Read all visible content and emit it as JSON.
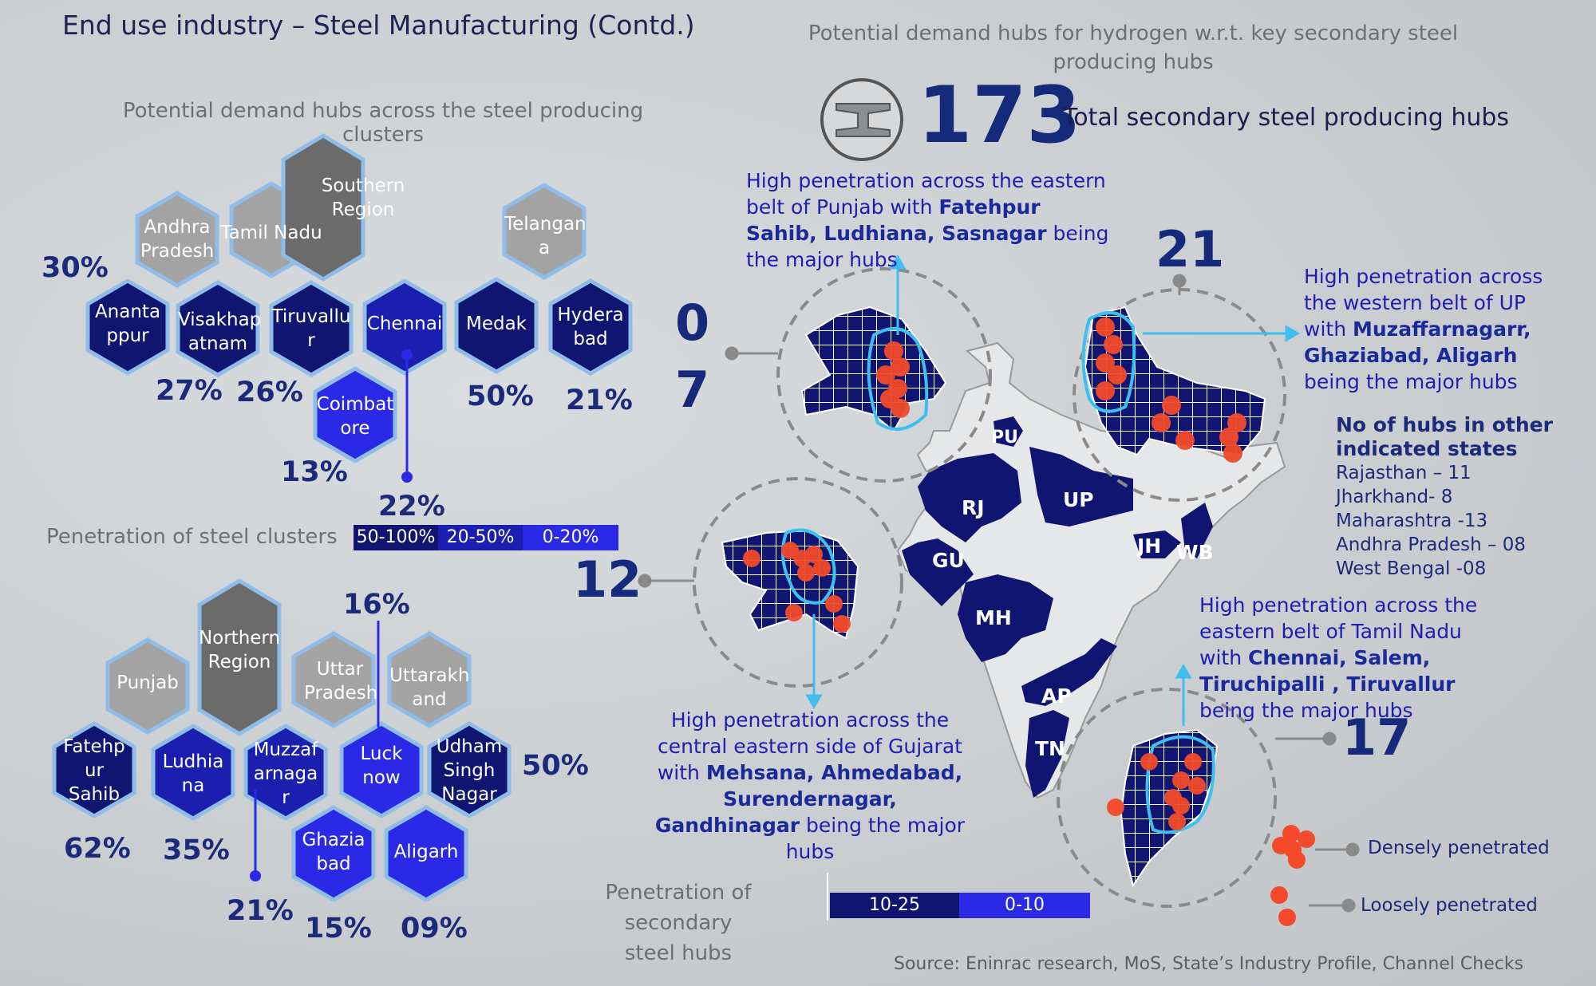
{
  "header": {
    "title": "End use industry – Steel Manufacturing (Contd.)",
    "right_title_1": "Potential demand hubs for hydrogen w.r.t. key secondary steel",
    "right_title_2": "producing hubs"
  },
  "left": {
    "clusters_title": "Potential demand hubs across the steel producing clusters",
    "southern": {
      "region": "Southern Region",
      "states": [
        {
          "name": "Andhra Pradesh",
          "pct": "30%"
        },
        {
          "name": "Tamil Nadu",
          "pct": ""
        },
        {
          "name": "Telangana",
          "pct": ""
        }
      ],
      "hubs": [
        {
          "name": "Anantappur",
          "pct": "27%"
        },
        {
          "name": "Visakhapatnam",
          "pct": "26%"
        },
        {
          "name": "Tiruvallur",
          "pct": ""
        },
        {
          "name": "Chennai",
          "pct": "22%"
        },
        {
          "name": "Coimbatore",
          "pct": "13%"
        },
        {
          "name": "Medak",
          "pct": "50%"
        },
        {
          "name": "Hyderabad",
          "pct": "21%"
        }
      ],
      "labels": {
        "ap_pct": "30%",
        "anantappur_pct": "27%",
        "visak_pct": "26%",
        "coim_pct": "13%",
        "chennai_pct": "22%",
        "medak_pct": "50%",
        "hyd_pct": "21%"
      }
    },
    "penetration_title": "Penetration of steel clusters",
    "penetration_legend": [
      "50-100%",
      "20-50%",
      "0-20%"
    ],
    "northern": {
      "region": "Northern Region",
      "labels": {
        "luck_pct": "16%",
        "udham_pct": "50%",
        "fatehpur_pct": "62%",
        "ludhiana_pct": "35%",
        "muzz_pct": "21%",
        "ghaz_pct": "15%",
        "aligarh_pct": "09%"
      }
    },
    "hex_text": {
      "andhra": "Andhra Pradesh",
      "tamil": "Tamil Nadu",
      "southern": "Southern Region",
      "telangana": "Telangan a",
      "anantappur": "Ananta ppur",
      "visak": "Visakhap atnam",
      "tiruvallur": "Tiruvallu r",
      "chennai": "Chennai",
      "medak": "Medak",
      "hyderabad": "Hydera bad",
      "coimbatore": "Coimbat ore",
      "punjab": "Punjab",
      "northern": "Northern Region",
      "uttar": "Uttar Pradesh",
      "uttarakhand": "Uttarakh and",
      "fatehpur": "Fatehp ur Sahib",
      "ludhiana": "Ludhia na",
      "muzz": "Muzzaf arnaga r",
      "lucknow": "Luck now",
      "udham": "Udham Singh Nagar",
      "ghaziabad": "Ghazia bad",
      "aligarh": "Aligarh"
    }
  },
  "right": {
    "total_num": "173",
    "total_label": "Total secondary steel producing hubs",
    "punjab_num_a": "0",
    "punjab_num_b": "7",
    "up_num": "21",
    "gujarat_num": "12",
    "tn_num": "17",
    "callout_punjab": {
      "pre": "High penetration across the eastern belt of Punjab with ",
      "bold": "Fatehpur Sahib, Ludhiana, Sasnagar",
      "post": " being the major hubs"
    },
    "callout_up": {
      "pre": "High penetration across the western belt of UP with ",
      "bold": "Muzaffarnagarr, Ghaziabad, Aligarh",
      "post": " being the major hubs"
    },
    "callout_guj": {
      "pre": "High penetration across the central eastern side of Gujarat with ",
      "bold": "Mehsana, Ahmedabad, Surendernagar, Gandhinagar",
      "post": " being the major hubs"
    },
    "callout_tn": {
      "pre": "High penetration across the eastern belt of Tamil Nadu with ",
      "bold": "Chennai, Salem, Tiruchipalli , Tiruvallur",
      "post": " being the major hubs"
    },
    "other_states": {
      "heading_1": "No of hubs in other",
      "heading_2": "indicated states",
      "items": [
        "Rajasthan – 11",
        "Jharkhand- 8",
        "Maharashtra -13",
        "Andhra Pradesh – 08",
        "West Bengal -08"
      ]
    },
    "state_labels": [
      "PU",
      "RJ",
      "UP",
      "GU",
      "MH",
      "JH",
      "WB",
      "AP",
      "TN"
    ],
    "legend_dense": "Densely penetrated",
    "legend_loose": "Loosely penetrated",
    "secondary_title_1": "Penetration of secondary",
    "secondary_title_2": "steel hubs",
    "secondary_legend": [
      "10-25",
      "0-10"
    ],
    "source": "Source: Eninrac research, MoS, State’s Industry Profile,  Channel Checks"
  },
  "colors": {
    "dark": "#0f1570",
    "mid": "#1a1fb0",
    "light": "#2a2ae6",
    "grey": "#a3a3a3",
    "darkgrey": "#6b6b6b",
    "hexborder": "#8fbde8",
    "dot": "#f24a2a",
    "cyan": "#3fbfef"
  }
}
